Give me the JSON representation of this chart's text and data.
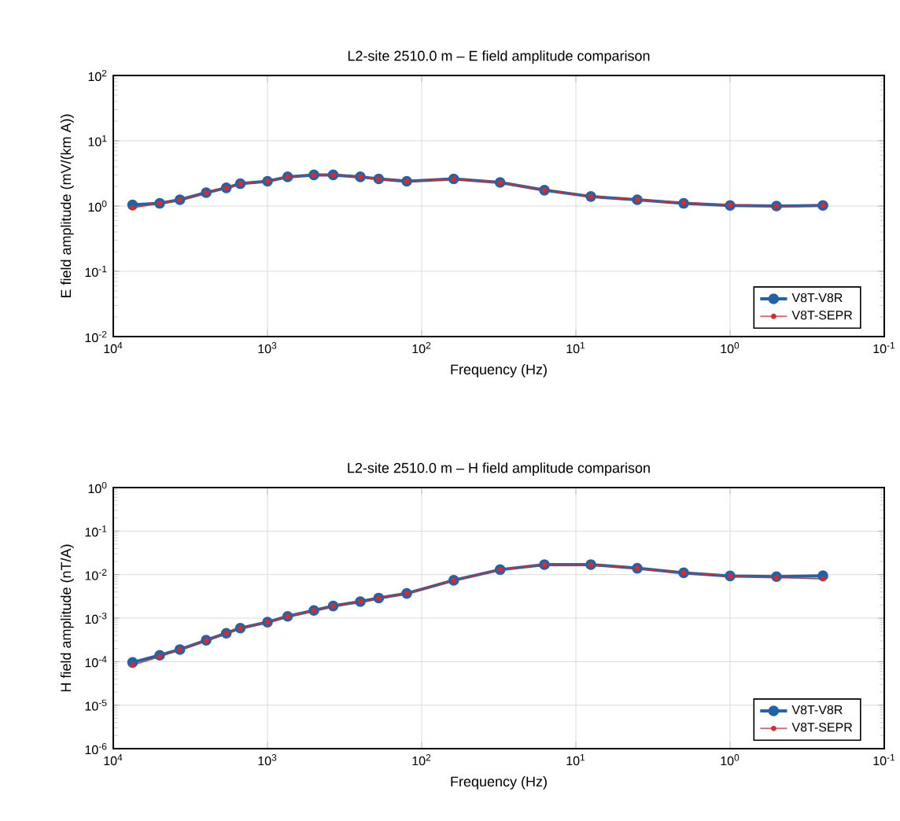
{
  "chart_data": [
    {
      "type": "line",
      "title": "L2-site 2510.0  m – E field amplitude  comparison",
      "xlabel": "Frequency  (Hz)",
      "ylabel": "E field amplitude  (mV/(km A))",
      "x": [
        7500,
        5000,
        3700,
        2500,
        1850,
        1500,
        1000,
        740,
        500,
        375,
        250,
        190,
        125,
        62,
        31,
        16,
        8,
        4,
        2,
        1,
        0.5,
        0.25
      ],
      "series": [
        {
          "name": "V8T-V8R",
          "color": "#2462a8",
          "values": [
            1.04,
            1.1,
            1.25,
            1.6,
            1.9,
            2.2,
            2.4,
            2.8,
            3.0,
            3.0,
            2.8,
            2.6,
            2.4,
            2.6,
            2.3,
            1.75,
            1.4,
            1.25,
            1.1,
            1.02,
            1.0,
            1.02
          ]
        },
        {
          "name": "V8T-SEPR",
          "color": "#e02828",
          "values": [
            0.94,
            1.1,
            1.25,
            1.6,
            1.9,
            2.2,
            2.4,
            2.8,
            3.0,
            3.0,
            2.8,
            2.6,
            2.4,
            2.6,
            2.3,
            1.75,
            1.4,
            1.25,
            1.13,
            1.04,
            1.0,
            1.02
          ]
        }
      ],
      "log": "xy",
      "xlim": [
        10000,
        0.1
      ],
      "ylim": [
        0.01,
        100
      ],
      "xticks": [
        {
          "value": 10000,
          "label": "10$^{4}$"
        },
        {
          "value": 1000,
          "label": "10$^{3}$"
        },
        {
          "value": 100,
          "label": "10$^{2}$"
        },
        {
          "value": 10,
          "label": "10$^{1}$"
        },
        {
          "value": 1,
          "label": "10$^{0}$"
        },
        {
          "value": 0.1,
          "label": "10$^{-1}$"
        }
      ],
      "yticks": [
        {
          "value": 0.01,
          "label": "10$^{-2}$"
        },
        {
          "value": 0.1,
          "label": "10$^{-1}$"
        },
        {
          "value": 1,
          "label": "10$^{0}$"
        },
        {
          "value": 10,
          "label": "10$^{1}$"
        },
        {
          "value": 100,
          "label": "10$^{2}$"
        }
      ],
      "grid": true,
      "legend": "bottom right",
      "marker": "circle",
      "line_style": "solid"
    },
    {
      "type": "line",
      "title": "L2-site 2510.0  m – H field amplitude  comparison",
      "xlabel": "Frequency  (Hz)",
      "ylabel": "H field amplitude  (nT/A)",
      "x": [
        7500,
        5000,
        3700,
        2500,
        1850,
        1500,
        1000,
        740,
        500,
        375,
        250,
        190,
        125,
        62,
        31,
        16,
        8,
        4,
        2,
        1,
        0.5,
        0.25
      ],
      "series": [
        {
          "name": "V8T-V8R",
          "color": "#2462a8",
          "values": [
            9.6e-05,
            0.00014,
            0.00019,
            0.00031,
            0.00045,
            0.00059,
            0.00081,
            0.0011,
            0.0015,
            0.0019,
            0.0024,
            0.0029,
            0.0037,
            0.0074,
            0.013,
            0.017,
            0.017,
            0.014,
            0.011,
            0.0093,
            0.009,
            0.0094
          ]
        },
        {
          "name": "V8T-SEPR",
          "color": "#e02828",
          "values": [
            8.3e-05,
            0.00013,
            0.00019,
            0.00031,
            0.00045,
            0.00059,
            0.00081,
            0.0011,
            0.0015,
            0.0019,
            0.0024,
            0.0029,
            0.0037,
            0.0074,
            0.013,
            0.017,
            0.017,
            0.014,
            0.011,
            0.0093,
            0.0085,
            0.008
          ]
        }
      ],
      "log": "xy",
      "xlim": [
        10000,
        0.1
      ],
      "ylim": [
        1e-06,
        1
      ],
      "xticks": [
        {
          "value": 10000,
          "label": "10$^{4}$"
        },
        {
          "value": 1000,
          "label": "10$^{3}$"
        },
        {
          "value": 100,
          "label": "10$^{2}$"
        },
        {
          "value": 10,
          "label": "10$^{1}$"
        },
        {
          "value": 1,
          "label": "10$^{0}$"
        },
        {
          "value": 0.1,
          "label": "10$^{-1}$"
        }
      ],
      "yticks": [
        {
          "value": 1e-06,
          "label": "10$^{-6}$"
        },
        {
          "value": 1e-05,
          "label": "10$^{-5}$"
        },
        {
          "value": 0.0001,
          "label": "10$^{-4}$"
        },
        {
          "value": 0.001,
          "label": "10$^{-3}$"
        },
        {
          "value": 0.01,
          "label": "10$^{-2}$"
        },
        {
          "value": 0.1,
          "label": "10$^{-1}$"
        },
        {
          "value": 1,
          "label": "10$^{0}$"
        }
      ],
      "grid": true,
      "legend": "bottom right",
      "marker": "circle",
      "line_style": "solid"
    }
  ]
}
